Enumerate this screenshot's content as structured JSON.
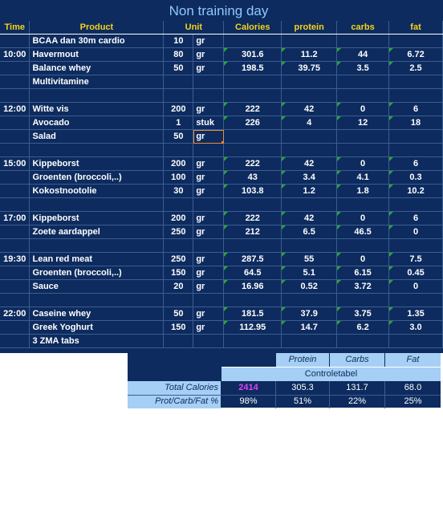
{
  "title": "Non training day",
  "headers": {
    "time": "Time",
    "product": "Product",
    "unit": "Unit",
    "calories": "Calories",
    "protein": "protein",
    "carbs": "carbs",
    "fat": "fat"
  },
  "rows": [
    {
      "time": "",
      "product": "BCAA dan 30m cardio",
      "qty": "10",
      "unit": "gr",
      "cal": "",
      "prot": "",
      "carb": "",
      "fat": ""
    },
    {
      "time": "10:00",
      "product": "Havermout",
      "qty": "80",
      "unit": "gr",
      "cal": "301.6",
      "prot": "11.2",
      "carb": "44",
      "fat": "6.72"
    },
    {
      "time": "",
      "product": "Balance whey",
      "qty": "50",
      "unit": "gr",
      "cal": "198.5",
      "prot": "39.75",
      "carb": "3.5",
      "fat": "2.5"
    },
    {
      "time": "",
      "product": "Multivitamine",
      "qty": "",
      "unit": "",
      "cal": "",
      "prot": "",
      "carb": "",
      "fat": ""
    },
    {
      "time": "",
      "product": "",
      "qty": "",
      "unit": "",
      "cal": "",
      "prot": "",
      "carb": "",
      "fat": ""
    },
    {
      "time": "12:00",
      "product": "Witte vis",
      "qty": "200",
      "unit": "gr",
      "cal": "222",
      "prot": "42",
      "carb": "0",
      "fat": "6"
    },
    {
      "time": "",
      "product": "Avocado",
      "qty": "1",
      "unit": "stuk",
      "cal": "226",
      "prot": "4",
      "carb": "12",
      "fat": "18"
    },
    {
      "time": "",
      "product": "Salad",
      "qty": "50",
      "unit": "gr",
      "cal": "",
      "prot": "",
      "carb": "",
      "fat": ""
    },
    {
      "time": "",
      "product": "",
      "qty": "",
      "unit": "",
      "cal": "",
      "prot": "",
      "carb": "",
      "fat": ""
    },
    {
      "time": "15:00",
      "product": "Kippeborst",
      "qty": "200",
      "unit": "gr",
      "cal": "222",
      "prot": "42",
      "carb": "0",
      "fat": "6"
    },
    {
      "time": "",
      "product": "Groenten (broccoli,..)",
      "qty": "100",
      "unit": "gr",
      "cal": "43",
      "prot": "3.4",
      "carb": "4.1",
      "fat": "0.3"
    },
    {
      "time": "",
      "product": "Kokostnootolie",
      "qty": "30",
      "unit": "gr",
      "cal": "103.8",
      "prot": "1.2",
      "carb": "1.8",
      "fat": "10.2"
    },
    {
      "time": "",
      "product": "",
      "qty": "",
      "unit": "",
      "cal": "",
      "prot": "",
      "carb": "",
      "fat": ""
    },
    {
      "time": "17:00",
      "product": "Kippeborst",
      "qty": "200",
      "unit": "gr",
      "cal": "222",
      "prot": "42",
      "carb": "0",
      "fat": "6"
    },
    {
      "time": "",
      "product": "Zoete aardappel",
      "qty": "250",
      "unit": "gr",
      "cal": "212",
      "prot": "6.5",
      "carb": "46.5",
      "fat": "0"
    },
    {
      "time": "",
      "product": "",
      "qty": "",
      "unit": "",
      "cal": "",
      "prot": "",
      "carb": "",
      "fat": ""
    },
    {
      "time": "19:30",
      "product": "Lean red meat",
      "qty": "250",
      "unit": "gr",
      "cal": "287.5",
      "prot": "55",
      "carb": "0",
      "fat": "7.5"
    },
    {
      "time": "",
      "product": "Groenten (broccoli,..)",
      "qty": "150",
      "unit": "gr",
      "cal": "64.5",
      "prot": "5.1",
      "carb": "6.15",
      "fat": "0.45"
    },
    {
      "time": "",
      "product": "Sauce",
      "qty": "20",
      "unit": "gr",
      "cal": "16.96",
      "prot": "0.52",
      "carb": "3.72",
      "fat": "0"
    },
    {
      "time": "",
      "product": "",
      "qty": "",
      "unit": "",
      "cal": "",
      "prot": "",
      "carb": "",
      "fat": ""
    },
    {
      "time": "22:00",
      "product": "Caseine whey",
      "qty": "50",
      "unit": "gr",
      "cal": "181.5",
      "prot": "37.9",
      "carb": "3.75",
      "fat": "1.35"
    },
    {
      "time": "",
      "product": "Greek Yoghurt",
      "qty": "150",
      "unit": "gr",
      "cal": "112.95",
      "prot": "14.7",
      "carb": "6.2",
      "fat": "3.0"
    },
    {
      "time": "",
      "product": "3 ZMA tabs",
      "qty": "",
      "unit": "",
      "cal": "",
      "prot": "",
      "carb": "",
      "fat": ""
    }
  ],
  "control": {
    "protein_h": "Protein",
    "carbs_h": "Carbs",
    "fat_h": "Fat",
    "table_title": "Controletabel",
    "total_label": "Total Calories",
    "total_cal": "2414",
    "total_prot": "305.3",
    "total_carb": "131.7",
    "total_fat": "68.0",
    "pct_label": "Prot/Carb/Fat %",
    "pct_total": "98%",
    "pct_prot": "51%",
    "pct_carb": "22%",
    "pct_fat": "25%",
    "accent": "#e040fb"
  }
}
